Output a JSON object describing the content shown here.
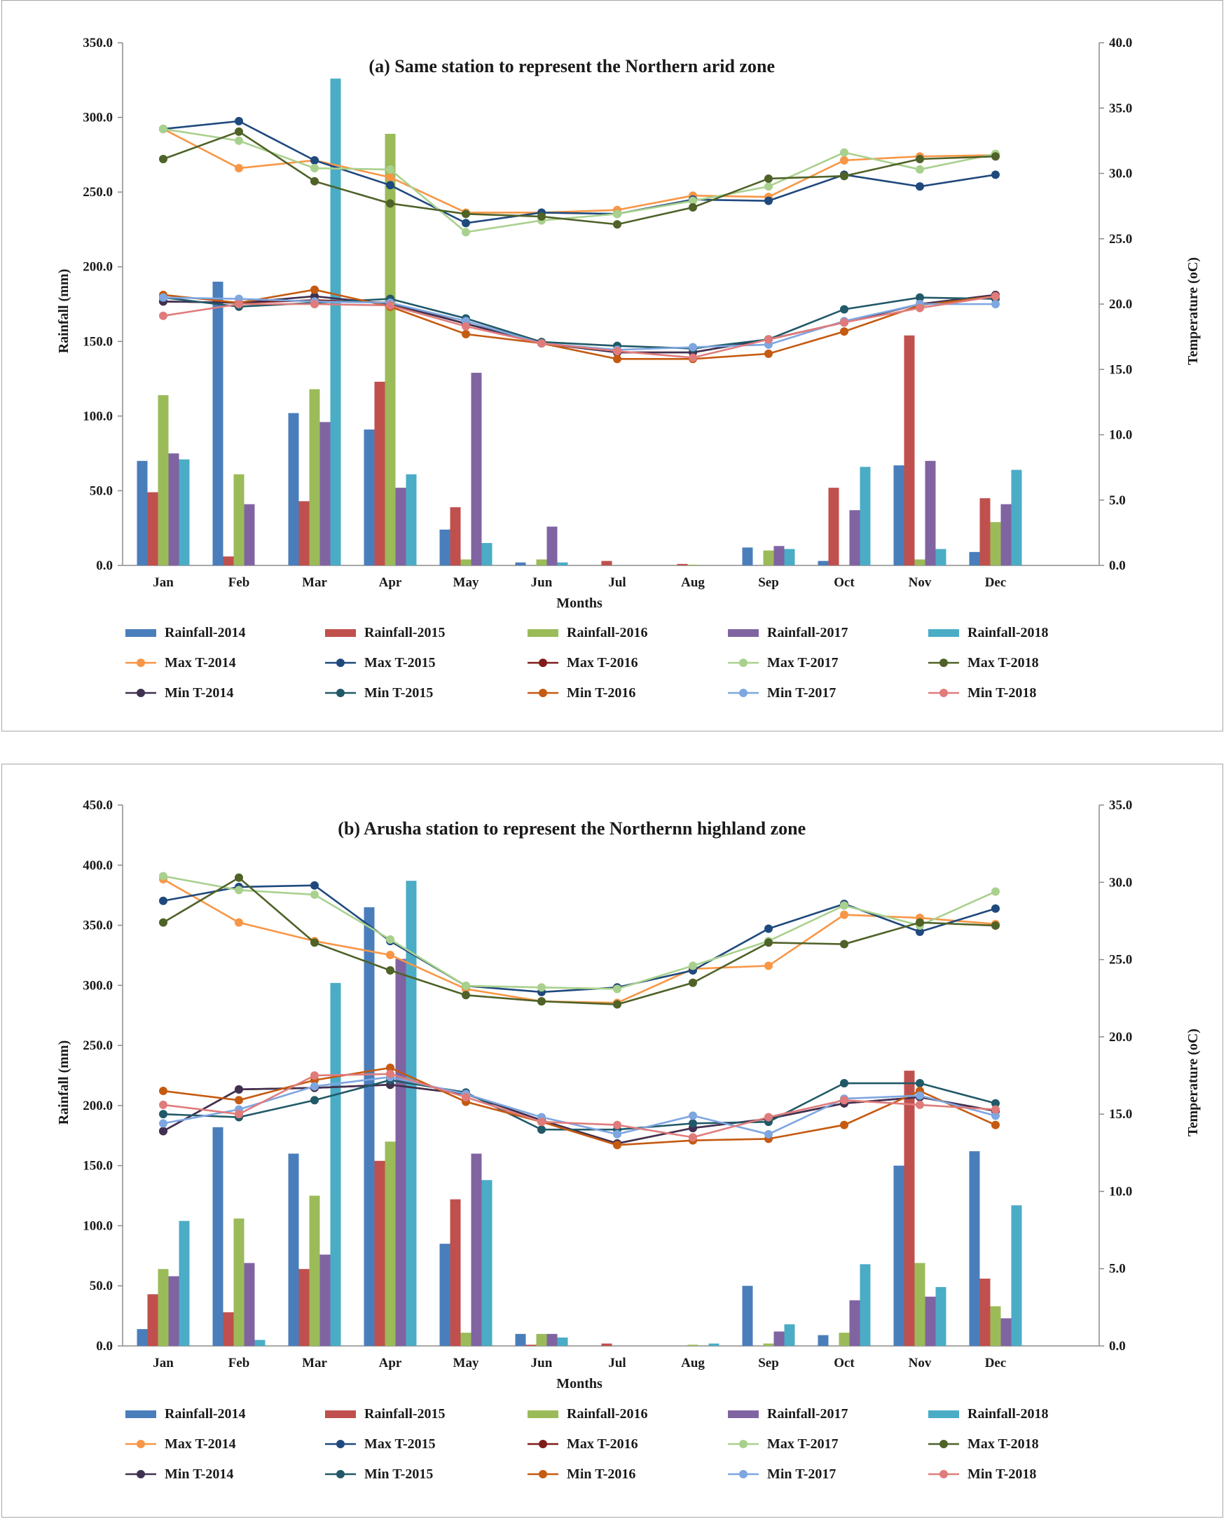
{
  "chart_data": [
    {
      "type": "bar+line",
      "title": "(a) Same station to represent the Northern arid zone",
      "xlabel": "Months",
      "ylabel": "Rainfall (mm)",
      "y2label": "Temperature (oC)",
      "ylim": [
        0,
        350
      ],
      "yticks": [
        "0.0",
        "50.0",
        "100.0",
        "150.0",
        "200.0",
        "250.0",
        "300.0",
        "350.0"
      ],
      "y2lim": [
        0,
        40
      ],
      "y2ticks": [
        "0.0",
        "5.0",
        "10.0",
        "15.0",
        "20.0",
        "25.0",
        "30.0",
        "35.0",
        "40.0"
      ],
      "categories": [
        "Jan",
        "Feb",
        "Mar",
        "Apr",
        "May",
        "Jun",
        "Jul",
        "Aug",
        "Sep",
        "Oct",
        "Nov",
        "Dec"
      ],
      "bars": [
        {
          "name": "Rainfall-2014",
          "color": "#4a7ebb",
          "values": [
            70,
            190,
            102,
            91,
            24,
            2,
            0,
            0,
            12,
            3,
            67,
            9
          ]
        },
        {
          "name": "Rainfall-2015",
          "color": "#c0504d",
          "values": [
            49,
            6,
            43,
            123,
            39,
            0,
            3,
            1,
            0,
            52,
            154,
            45
          ]
        },
        {
          "name": "Rainfall-2016",
          "color": "#9bbb59",
          "values": [
            114,
            61,
            118,
            289,
            4,
            4,
            0,
            0.5,
            10,
            0,
            4,
            29
          ]
        },
        {
          "name": "Rainfall-2017",
          "color": "#8064a2",
          "values": [
            75,
            41,
            96,
            52,
            129,
            26,
            0,
            0,
            13,
            37,
            70,
            41
          ]
        },
        {
          "name": "Rainfall-2018",
          "color": "#4bacc6",
          "values": [
            71,
            0,
            326,
            61,
            15,
            2,
            0,
            0,
            11,
            66,
            11,
            64
          ]
        }
      ],
      "lines": [
        {
          "name": "Max T-2014",
          "color": "#f79646",
          "values": [
            33.4,
            30.4,
            31.0,
            29.7,
            27.0,
            27.0,
            27.2,
            28.3,
            28.2,
            31.0,
            31.3,
            31.4
          ]
        },
        {
          "name": "Max T-2015",
          "color": "#1f497d",
          "values": [
            33.4,
            34.0,
            31.0,
            29.1,
            26.2,
            27.0,
            26.9,
            28.0,
            27.9,
            29.9,
            29.0,
            29.9
          ]
        },
        {
          "name": "Max T-2016",
          "color": "#7f1c1a",
          "values": [
            20.2,
            20.1,
            20.3,
            20.1,
            18.5,
            17.0,
            16.3,
            16.3,
            17.3,
            18.6,
            20.0,
            20.7
          ]
        },
        {
          "name": "Max T-2017",
          "color": "#a9d18e",
          "values": [
            33.4,
            32.5,
            30.4,
            30.3,
            25.5,
            26.4,
            26.9,
            27.9,
            29.0,
            31.6,
            30.3,
            31.5
          ]
        },
        {
          "name": "Max T-2018",
          "color": "#4f6228",
          "values": [
            31.1,
            33.2,
            29.4,
            27.7,
            26.9,
            26.7,
            26.1,
            27.4,
            29.6,
            29.8,
            31.1,
            31.3
          ]
        },
        {
          "name": "Min T-2014",
          "color": "#403151",
          "values": [
            20.2,
            20.1,
            20.6,
            20.0,
            18.5,
            17.0,
            16.3,
            16.3,
            17.3,
            18.6,
            20.0,
            20.7
          ]
        },
        {
          "name": "Min T-2015",
          "color": "#215968",
          "values": [
            20.5,
            19.8,
            20.1,
            20.4,
            18.9,
            17.1,
            16.8,
            16.6,
            17.3,
            19.6,
            20.5,
            20.4
          ]
        },
        {
          "name": "Min T-2016",
          "color": "#c55a11",
          "values": [
            20.7,
            20.1,
            21.1,
            19.8,
            17.7,
            17.0,
            15.8,
            15.8,
            16.2,
            17.9,
            19.9,
            20.6
          ]
        },
        {
          "name": "Min T-2017",
          "color": "#7ea6e0",
          "values": [
            20.5,
            20.4,
            20.2,
            20.1,
            18.7,
            17.0,
            16.5,
            16.7,
            16.9,
            18.7,
            20.0,
            20.0
          ]
        },
        {
          "name": "Min T-2018",
          "color": "#e07b7b",
          "values": [
            19.1,
            20.0,
            20.0,
            19.9,
            18.3,
            17.0,
            16.4,
            15.9,
            17.3,
            18.6,
            19.7,
            20.6
          ]
        }
      ]
    },
    {
      "type": "bar+line",
      "title": "(b) Arusha station to represent the Northernn highland zone",
      "xlabel": "Months",
      "ylabel": "Rainfall (mm)",
      "y2label": "Temperature (oC)",
      "ylim": [
        0,
        450
      ],
      "yticks": [
        "0.0",
        "50.0",
        "100.0",
        "150.0",
        "200.0",
        "250.0",
        "300.0",
        "350.0",
        "400.0",
        "450.0"
      ],
      "y2lim": [
        0,
        35
      ],
      "y2ticks": [
        "0.0",
        "5.0",
        "10.0",
        "15.0",
        "20.0",
        "25.0",
        "30.0",
        "35.0"
      ],
      "categories": [
        "Jan",
        "Feb",
        "Mar",
        "Apr",
        "May",
        "Jun",
        "Jul",
        "Aug",
        "Sep",
        "Oct",
        "Nov",
        "Dec"
      ],
      "bars": [
        {
          "name": "Rainfall-2014",
          "color": "#4a7ebb",
          "values": [
            14,
            182,
            160,
            365,
            85,
            10,
            0,
            0,
            50,
            9,
            150,
            162
          ]
        },
        {
          "name": "Rainfall-2015",
          "color": "#c0504d",
          "values": [
            43,
            28,
            64,
            154,
            122,
            1,
            2,
            0,
            0,
            0,
            229,
            56
          ]
        },
        {
          "name": "Rainfall-2016",
          "color": "#9bbb59",
          "values": [
            64,
            106,
            125,
            170,
            11,
            10,
            0,
            1,
            2,
            11,
            69,
            33
          ]
        },
        {
          "name": "Rainfall-2017",
          "color": "#8064a2",
          "values": [
            58,
            69,
            76,
            322,
            160,
            10,
            0,
            0,
            12,
            38,
            41,
            23
          ]
        },
        {
          "name": "Rainfall-2018",
          "color": "#4bacc6",
          "values": [
            104,
            5,
            302,
            387,
            138,
            7,
            0,
            2,
            18,
            68,
            49,
            117
          ]
        }
      ],
      "lines": [
        {
          "name": "Max T-2014",
          "color": "#f79646",
          "values": [
            30.2,
            27.4,
            26.2,
            25.3,
            23.1,
            22.3,
            22.2,
            24.4,
            24.6,
            27.9,
            27.7,
            27.3
          ]
        },
        {
          "name": "Max T-2015",
          "color": "#1f497d",
          "values": [
            28.8,
            29.7,
            29.8,
            26.2,
            23.3,
            22.9,
            23.2,
            24.3,
            27.0,
            28.6,
            26.8,
            28.3
          ]
        },
        {
          "name": "Max T-2016",
          "color": "#7f1c1a",
          "values": [
            13.9,
            16.6,
            16.7,
            16.9,
            16.3,
            14.6,
            13.1,
            14.1,
            14.7,
            15.7,
            16.1,
            15.2
          ]
        },
        {
          "name": "Max T-2017",
          "color": "#a9d18e",
          "values": [
            30.4,
            29.5,
            29.2,
            26.3,
            23.3,
            23.2,
            23.1,
            24.6,
            26.2,
            28.5,
            27.2,
            29.4
          ]
        },
        {
          "name": "Max T-2018",
          "color": "#4f6228",
          "values": [
            27.4,
            30.3,
            26.1,
            24.3,
            22.7,
            22.3,
            22.1,
            23.5,
            26.1,
            26.0,
            27.4,
            27.2
          ]
        },
        {
          "name": "Min T-2014",
          "color": "#403151",
          "values": [
            13.9,
            16.6,
            16.7,
            16.9,
            16.3,
            14.6,
            13.1,
            14.1,
            14.7,
            15.7,
            16.1,
            15.2
          ]
        },
        {
          "name": "Min T-2015",
          "color": "#215968",
          "values": [
            15.0,
            14.8,
            15.9,
            17.2,
            16.4,
            14.0,
            14.0,
            14.4,
            14.5,
            17.0,
            17.0,
            15.7
          ]
        },
        {
          "name": "Min T-2016",
          "color": "#c55a11",
          "values": [
            16.5,
            15.9,
            17.2,
            18.0,
            15.8,
            14.5,
            13.0,
            13.3,
            13.4,
            14.3,
            16.5,
            14.3
          ]
        },
        {
          "name": "Min T-2017",
          "color": "#7ea6e0",
          "values": [
            14.4,
            15.3,
            16.8,
            17.4,
            16.3,
            14.8,
            13.7,
            14.9,
            13.7,
            16.0,
            16.2,
            14.9
          ]
        },
        {
          "name": "Min T-2018",
          "color": "#e07b7b",
          "values": [
            15.6,
            15.0,
            17.5,
            17.6,
            16.1,
            14.5,
            14.3,
            13.5,
            14.8,
            15.9,
            15.6,
            15.3
          ]
        }
      ]
    }
  ]
}
